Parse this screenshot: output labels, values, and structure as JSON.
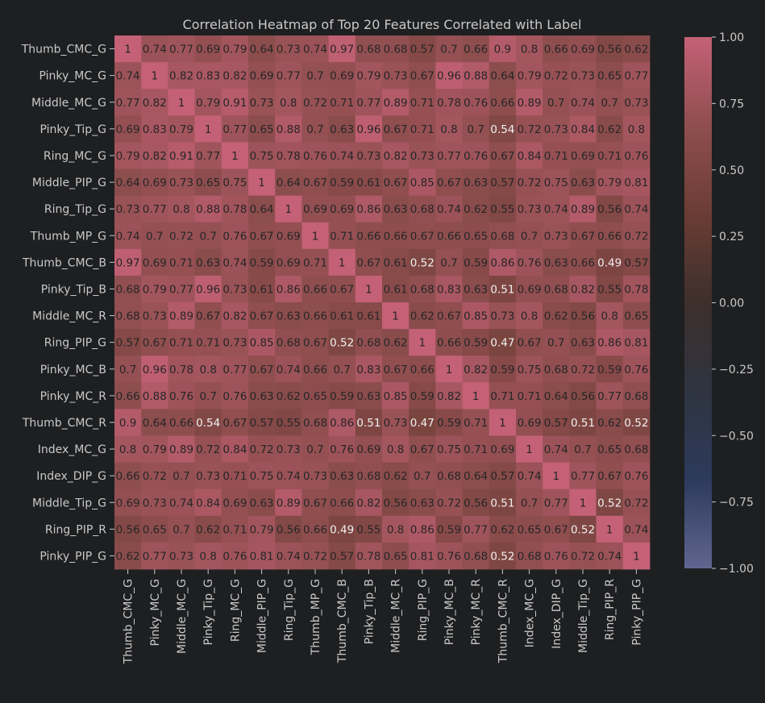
{
  "chart_data": {
    "type": "heatmap",
    "title": "Correlation Heatmap of Top 20 Features Correlated with Label",
    "labels": [
      "Thumb_CMC_G",
      "Pinky_MC_G",
      "Middle_MC_G",
      "Pinky_Tip_G",
      "Ring_MC_G",
      "Middle_PIP_G",
      "Ring_Tip_G",
      "Thumb_MP_G",
      "Thumb_CMC_B",
      "Pinky_Tip_B",
      "Middle_MC_R",
      "Ring_PIP_G",
      "Pinky_MC_B",
      "Pinky_MC_R",
      "Thumb_CMC_R",
      "Index_MC_G",
      "Index_DIP_G",
      "Middle_Tip_G",
      "Ring_PIP_R",
      "Pinky_PIP_G"
    ],
    "matrix": [
      [
        1,
        0.74,
        0.77,
        0.69,
        0.79,
        0.64,
        0.73,
        0.74,
        0.97,
        0.68,
        0.68,
        0.57,
        0.7,
        0.66,
        0.9,
        0.8,
        0.66,
        0.69,
        0.56,
        0.62
      ],
      [
        0.74,
        1,
        0.82,
        0.83,
        0.82,
        0.69,
        0.77,
        0.7,
        0.69,
        0.79,
        0.73,
        0.67,
        0.96,
        0.88,
        0.64,
        0.79,
        0.72,
        0.73,
        0.65,
        0.77
      ],
      [
        0.77,
        0.82,
        1,
        0.79,
        0.91,
        0.73,
        0.8,
        0.72,
        0.71,
        0.77,
        0.89,
        0.71,
        0.78,
        0.76,
        0.66,
        0.89,
        0.7,
        0.74,
        0.7,
        0.73
      ],
      [
        0.69,
        0.83,
        0.79,
        1,
        0.77,
        0.65,
        0.88,
        0.7,
        0.63,
        0.96,
        0.67,
        0.71,
        0.8,
        0.7,
        0.54,
        0.72,
        0.73,
        0.84,
        0.62,
        0.8
      ],
      [
        0.79,
        0.82,
        0.91,
        0.77,
        1,
        0.75,
        0.78,
        0.76,
        0.74,
        0.73,
        0.82,
        0.73,
        0.77,
        0.76,
        0.67,
        0.84,
        0.71,
        0.69,
        0.71,
        0.76
      ],
      [
        0.64,
        0.69,
        0.73,
        0.65,
        0.75,
        1,
        0.64,
        0.67,
        0.59,
        0.61,
        0.67,
        0.85,
        0.67,
        0.63,
        0.57,
        0.72,
        0.75,
        0.63,
        0.79,
        0.81
      ],
      [
        0.73,
        0.77,
        0.8,
        0.88,
        0.78,
        0.64,
        1,
        0.69,
        0.69,
        0.86,
        0.63,
        0.68,
        0.74,
        0.62,
        0.55,
        0.73,
        0.74,
        0.89,
        0.56,
        0.74
      ],
      [
        0.74,
        0.7,
        0.72,
        0.7,
        0.76,
        0.67,
        0.69,
        1,
        0.71,
        0.66,
        0.66,
        0.67,
        0.66,
        0.65,
        0.68,
        0.7,
        0.73,
        0.67,
        0.66,
        0.72
      ],
      [
        0.97,
        0.69,
        0.71,
        0.63,
        0.74,
        0.59,
        0.69,
        0.71,
        1,
        0.67,
        0.61,
        0.52,
        0.7,
        0.59,
        0.86,
        0.76,
        0.63,
        0.66,
        0.49,
        0.57
      ],
      [
        0.68,
        0.79,
        0.77,
        0.96,
        0.73,
        0.61,
        0.86,
        0.66,
        0.67,
        1,
        0.61,
        0.68,
        0.83,
        0.63,
        0.51,
        0.69,
        0.68,
        0.82,
        0.55,
        0.78
      ],
      [
        0.68,
        0.73,
        0.89,
        0.67,
        0.82,
        0.67,
        0.63,
        0.66,
        0.61,
        0.61,
        1,
        0.62,
        0.67,
        0.85,
        0.73,
        0.8,
        0.62,
        0.56,
        0.8,
        0.65
      ],
      [
        0.57,
        0.67,
        0.71,
        0.71,
        0.73,
        0.85,
        0.68,
        0.67,
        0.52,
        0.68,
        0.62,
        1,
        0.66,
        0.59,
        0.47,
        0.67,
        0.7,
        0.63,
        0.86,
        0.81
      ],
      [
        0.7,
        0.96,
        0.78,
        0.8,
        0.77,
        0.67,
        0.74,
        0.66,
        0.7,
        0.83,
        0.67,
        0.66,
        1,
        0.82,
        0.59,
        0.75,
        0.68,
        0.72,
        0.59,
        0.76
      ],
      [
        0.66,
        0.88,
        0.76,
        0.7,
        0.76,
        0.63,
        0.62,
        0.65,
        0.59,
        0.63,
        0.85,
        0.59,
        0.82,
        1,
        0.71,
        0.71,
        0.64,
        0.56,
        0.77,
        0.68
      ],
      [
        0.9,
        0.64,
        0.66,
        0.54,
        0.67,
        0.57,
        0.55,
        0.68,
        0.86,
        0.51,
        0.73,
        0.47,
        0.59,
        0.71,
        1,
        0.69,
        0.57,
        0.51,
        0.62,
        0.52
      ],
      [
        0.8,
        0.79,
        0.89,
        0.72,
        0.84,
        0.72,
        0.73,
        0.7,
        0.76,
        0.69,
        0.8,
        0.67,
        0.75,
        0.71,
        0.69,
        1,
        0.74,
        0.7,
        0.65,
        0.68
      ],
      [
        0.66,
        0.72,
        0.7,
        0.73,
        0.71,
        0.75,
        0.74,
        0.73,
        0.63,
        0.68,
        0.62,
        0.7,
        0.68,
        0.64,
        0.57,
        0.74,
        1,
        0.77,
        0.67,
        0.76
      ],
      [
        0.69,
        0.73,
        0.74,
        0.84,
        0.69,
        0.63,
        0.89,
        0.67,
        0.66,
        0.82,
        0.56,
        0.63,
        0.72,
        0.56,
        0.51,
        0.7,
        0.77,
        1,
        0.52,
        0.72
      ],
      [
        0.56,
        0.65,
        0.7,
        0.62,
        0.71,
        0.79,
        0.56,
        0.66,
        0.49,
        0.55,
        0.8,
        0.86,
        0.59,
        0.77,
        0.62,
        0.65,
        0.67,
        0.52,
        1,
        0.74
      ],
      [
        0.62,
        0.77,
        0.73,
        0.8,
        0.76,
        0.81,
        0.74,
        0.72,
        0.57,
        0.78,
        0.65,
        0.81,
        0.76,
        0.68,
        0.52,
        0.68,
        0.76,
        0.72,
        0.74,
        1
      ]
    ],
    "vmin": -1.0,
    "vmax": 1.0,
    "colorbar_ticks": [
      "1.00",
      "0.75",
      "0.50",
      "0.25",
      "0.00",
      "−0.25",
      "−0.50",
      "−0.75",
      "−1.00"
    ],
    "colorbar_tick_values": [
      1.0,
      0.75,
      0.5,
      0.25,
      0.0,
      -0.25,
      -0.5,
      -0.75,
      -1.0
    ],
    "colormap": [
      "#5f6690",
      "#2d3a5c",
      "#2e3440",
      "#3d2f2c",
      "#6b3d34",
      "#8f4e4f",
      "#c46176"
    ],
    "annotation_color_light": "#f0f0f0",
    "annotation_color_dark": "#262626",
    "background_color": "#1e1f21",
    "text_color": "#c9c9c9",
    "grid": false,
    "legend": "colorbar-right"
  }
}
